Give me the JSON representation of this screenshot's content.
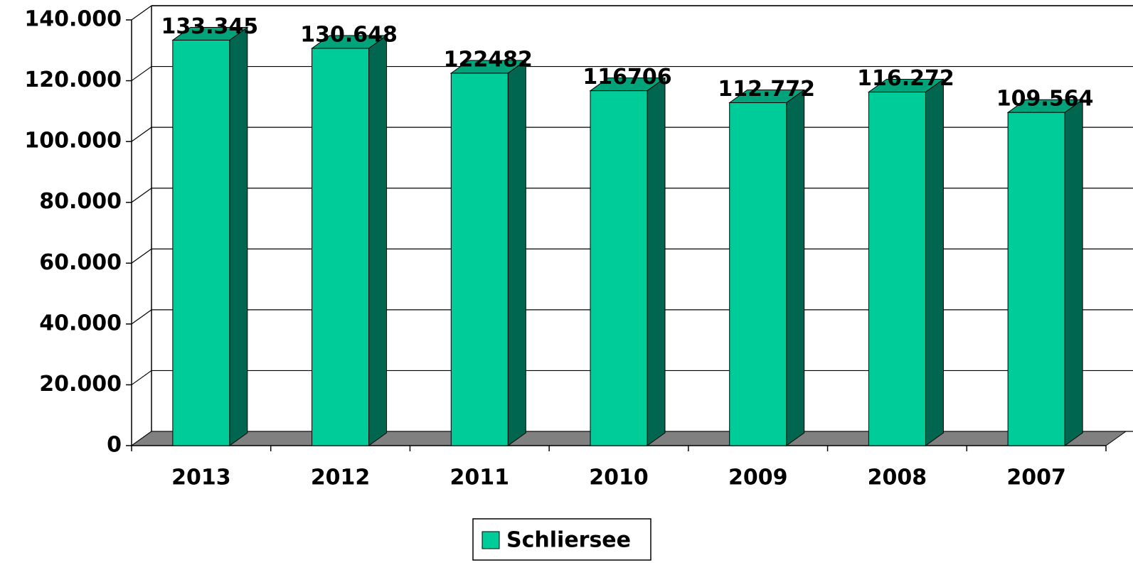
{
  "chart_data": {
    "type": "bar3d",
    "categories": [
      "2013",
      "2012",
      "2011",
      "2010",
      "2009",
      "2008",
      "2007"
    ],
    "series": [
      {
        "name": "Schliersee",
        "color": "#00cc99",
        "values": [
          133345,
          130648,
          122482,
          116706,
          112772,
          116272,
          109564
        ],
        "value_labels": [
          "133.345",
          "130.648",
          "122482",
          "116706",
          "112.772",
          "116.272",
          "109.564"
        ]
      }
    ],
    "ylim": [
      0,
      140000
    ],
    "yticks": [
      0,
      {
        "value": 20000,
        "label": "20.000"
      },
      {
        "value": 40000,
        "label": "40.000"
      },
      {
        "value": 60000,
        "label": "60.000"
      },
      {
        "value": 80000,
        "label": "80.000"
      },
      {
        "value": 100000,
        "label": "100.000"
      },
      {
        "value": 120000,
        "label": "120.000"
      },
      {
        "value": 140000,
        "label": "140.000"
      }
    ],
    "grid": true,
    "legend": "bottom"
  }
}
